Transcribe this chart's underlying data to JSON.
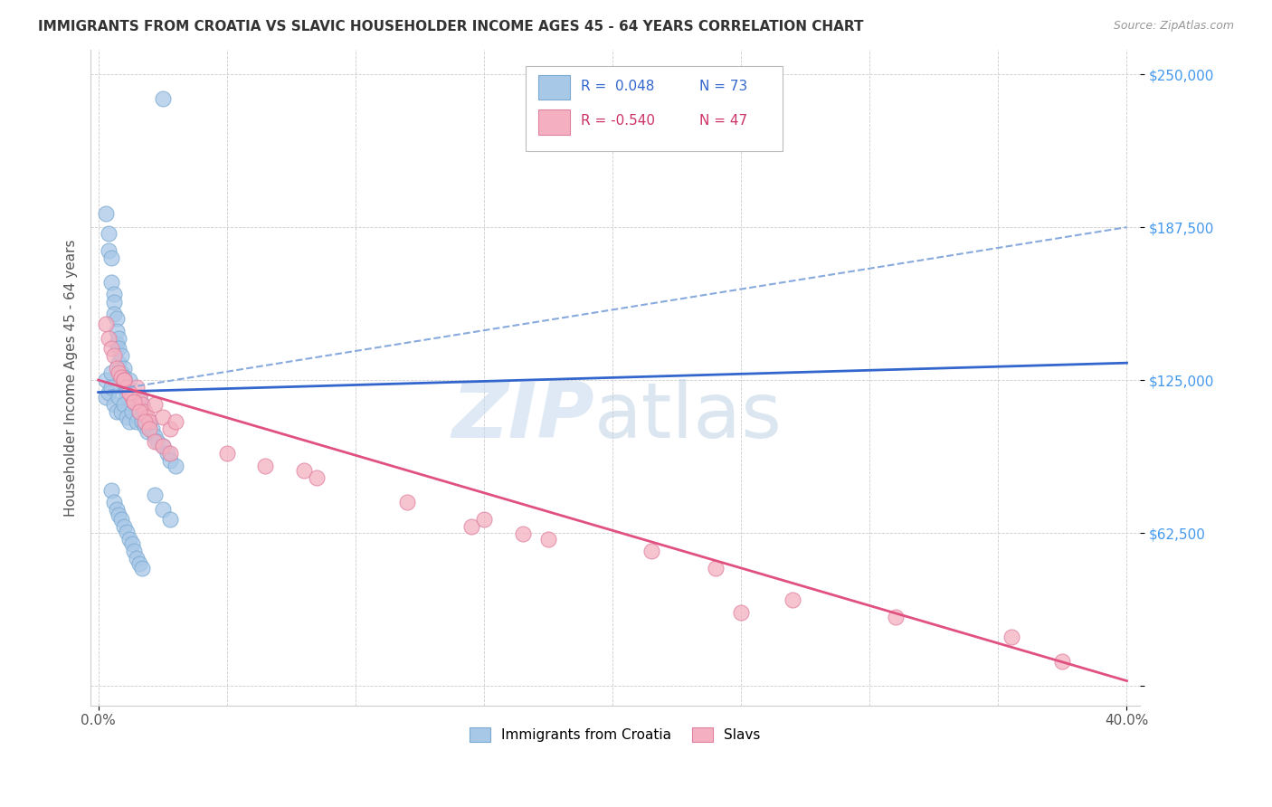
{
  "title": "IMMIGRANTS FROM CROATIA VS SLAVIC HOUSEHOLDER INCOME AGES 45 - 64 YEARS CORRELATION CHART",
  "source": "Source: ZipAtlas.com",
  "ylabel": "Householder Income Ages 45 - 64 years",
  "croatia_color": "#a8c8e8",
  "slavs_color": "#f4b0c0",
  "croatia_edge": "#7aaad0",
  "slavs_edge": "#e080a0",
  "line_croatia_solid_color": "#3366cc",
  "line_croatia_dash_color": "#88aadd",
  "line_slavs_color": "#e05080",
  "legend_label_croatia": "Immigrants from Croatia",
  "legend_label_slavs": "Slavs",
  "watermark_zip": "ZIP",
  "watermark_atlas": "atlas",
  "croatia_x": [
    0.025,
    0.003,
    0.004,
    0.004,
    0.005,
    0.005,
    0.006,
    0.006,
    0.006,
    0.007,
    0.007,
    0.007,
    0.008,
    0.008,
    0.008,
    0.009,
    0.009,
    0.01,
    0.01,
    0.01,
    0.011,
    0.011,
    0.012,
    0.012,
    0.012,
    0.013,
    0.014,
    0.015,
    0.015,
    0.016,
    0.017,
    0.003,
    0.003,
    0.004,
    0.005,
    0.005,
    0.006,
    0.007,
    0.008,
    0.009,
    0.01,
    0.011,
    0.012,
    0.013,
    0.015,
    0.016,
    0.017,
    0.018,
    0.019,
    0.02,
    0.021,
    0.022,
    0.023,
    0.025,
    0.027,
    0.028,
    0.03,
    0.022,
    0.025,
    0.028,
    0.005,
    0.006,
    0.007,
    0.008,
    0.009,
    0.01,
    0.011,
    0.012,
    0.013,
    0.014,
    0.015,
    0.016,
    0.017
  ],
  "croatia_y": [
    240000,
    193000,
    185000,
    178000,
    175000,
    165000,
    160000,
    157000,
    152000,
    150000,
    145000,
    140000,
    142000,
    138000,
    132000,
    135000,
    128000,
    130000,
    126000,
    122000,
    120000,
    118000,
    125000,
    120000,
    116000,
    118000,
    115000,
    114000,
    111000,
    118000,
    115000,
    125000,
    118000,
    120000,
    128000,
    122000,
    115000,
    112000,
    118000,
    112000,
    115000,
    110000,
    108000,
    112000,
    108000,
    112000,
    108000,
    106000,
    104000,
    108000,
    105000,
    102000,
    100000,
    98000,
    95000,
    92000,
    90000,
    78000,
    72000,
    68000,
    80000,
    75000,
    72000,
    70000,
    68000,
    65000,
    63000,
    60000,
    58000,
    55000,
    52000,
    50000,
    48000
  ],
  "slavs_x": [
    0.003,
    0.004,
    0.005,
    0.006,
    0.007,
    0.008,
    0.009,
    0.01,
    0.011,
    0.012,
    0.013,
    0.014,
    0.015,
    0.016,
    0.017,
    0.018,
    0.019,
    0.02,
    0.022,
    0.025,
    0.028,
    0.03,
    0.01,
    0.012,
    0.014,
    0.016,
    0.018,
    0.02,
    0.022,
    0.025,
    0.028,
    0.05,
    0.065,
    0.08,
    0.085,
    0.12,
    0.145,
    0.15,
    0.165,
    0.175,
    0.215,
    0.24,
    0.25,
    0.27,
    0.31,
    0.355,
    0.375
  ],
  "slavs_y": [
    148000,
    142000,
    138000,
    135000,
    130000,
    128000,
    126000,
    125000,
    122000,
    120000,
    118000,
    116000,
    122000,
    118000,
    115000,
    112000,
    110000,
    108000,
    115000,
    110000,
    105000,
    108000,
    125000,
    120000,
    116000,
    112000,
    108000,
    105000,
    100000,
    98000,
    95000,
    95000,
    90000,
    88000,
    85000,
    75000,
    65000,
    68000,
    62000,
    60000,
    55000,
    48000,
    30000,
    35000,
    28000,
    20000,
    10000
  ],
  "cr_line_x0": 0.0,
  "cr_line_x1": 0.4,
  "cr_line_y0_solid": 120000,
  "cr_line_y1_solid": 132000,
  "cr_line_y0_dash": 120000,
  "cr_line_y1_dash": 187500,
  "sl_line_y0": 125000,
  "sl_line_y1": 2000,
  "yticks": [
    0,
    62500,
    125000,
    187500,
    250000
  ],
  "ytick_labels": [
    "",
    "$62,500",
    "$125,000",
    "$187,500",
    "$250,000"
  ],
  "xtick_show": [
    0.0,
    0.4
  ],
  "xtick_labels": [
    "0.0%",
    "40.0%"
  ],
  "grid_xticks": [
    0.0,
    0.05,
    0.1,
    0.15,
    0.2,
    0.25,
    0.3,
    0.35,
    0.4
  ]
}
